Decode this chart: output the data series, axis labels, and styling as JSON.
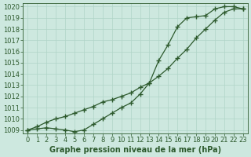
{
  "xlabel": "Graphe pression niveau de la mer (hPa)",
  "ylabel": "",
  "bg_color": "#cde8df",
  "grid_color": "#b0d4c8",
  "line_color": "#2d5a2d",
  "marker_color": "#2d5a2d",
  "series1_x": [
    0,
    1,
    2,
    3,
    4,
    5,
    6,
    7,
    8,
    9,
    10,
    11,
    12,
    13,
    14,
    15,
    16,
    17,
    18,
    19,
    20,
    21,
    22,
    23
  ],
  "series1_y": [
    1009.0,
    1009.1,
    1009.2,
    1009.1,
    1009.0,
    1008.85,
    1009.0,
    1009.5,
    1010.0,
    1010.5,
    1011.0,
    1011.4,
    1012.2,
    1013.2,
    1015.2,
    1016.6,
    1018.2,
    1019.0,
    1019.1,
    1019.2,
    1019.8,
    1020.0,
    1020.0,
    1019.8
  ],
  "series2_x": [
    0,
    1,
    2,
    3,
    4,
    5,
    6,
    7,
    8,
    9,
    10,
    11,
    12,
    13,
    14,
    15,
    16,
    17,
    18,
    19,
    20,
    21,
    22,
    23
  ],
  "series2_y": [
    1009.0,
    1009.3,
    1009.7,
    1010.0,
    1010.2,
    1010.5,
    1010.8,
    1011.1,
    1011.5,
    1011.7,
    1012.0,
    1012.3,
    1012.8,
    1013.2,
    1013.8,
    1014.5,
    1015.4,
    1016.2,
    1017.2,
    1018.0,
    1018.8,
    1019.5,
    1019.8,
    1019.8
  ],
  "ylim": [
    1009,
    1020
  ],
  "xlim": [
    0,
    23
  ],
  "yticks": [
    1009,
    1010,
    1011,
    1012,
    1013,
    1014,
    1015,
    1016,
    1017,
    1018,
    1019,
    1020
  ],
  "xticks": [
    0,
    1,
    2,
    3,
    4,
    5,
    6,
    7,
    8,
    9,
    10,
    11,
    12,
    13,
    14,
    15,
    16,
    17,
    18,
    19,
    20,
    21,
    22,
    23
  ],
  "title_fontsize": 7,
  "label_fontsize": 7,
  "tick_fontsize": 6
}
